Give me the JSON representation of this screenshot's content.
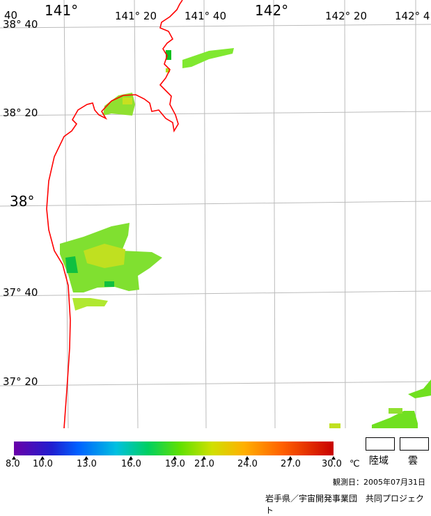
{
  "map": {
    "lon_labels": [
      {
        "text": "141°",
        "size": "big"
      },
      {
        "text": "141° 20",
        "size": "sm"
      },
      {
        "text": "141° 40",
        "size": "sm"
      },
      {
        "text": "142°",
        "size": "big"
      },
      {
        "text": "142° 20",
        "size": "sm"
      },
      {
        "text": "142° 4",
        "size": "sm"
      }
    ],
    "lat_labels": [
      {
        "text": "38° 40",
        "size": "sm"
      },
      {
        "text": "38° 20",
        "size": "sm"
      },
      {
        "text": "38°",
        "size": "big"
      },
      {
        "text": "37° 40",
        "size": "sm"
      },
      {
        "text": "37° 20",
        "size": "sm"
      }
    ],
    "corner_label": "40",
    "coastline_color": "#ff0000",
    "grid_color": "#bbbbbb"
  },
  "legend": {
    "ticks": [
      "8.0",
      "10.0",
      "13.0",
      "16.0",
      "19.0",
      "21.0",
      "24.0",
      "27.0",
      "30.0"
    ],
    "unit": "℃",
    "land_label": "陸域",
    "cloud_label": "雲"
  },
  "footer": {
    "observation_date": "観測日：2005年07月31日",
    "credit": "岩手県／宇宙開発事業団　共同プロジェクト"
  }
}
